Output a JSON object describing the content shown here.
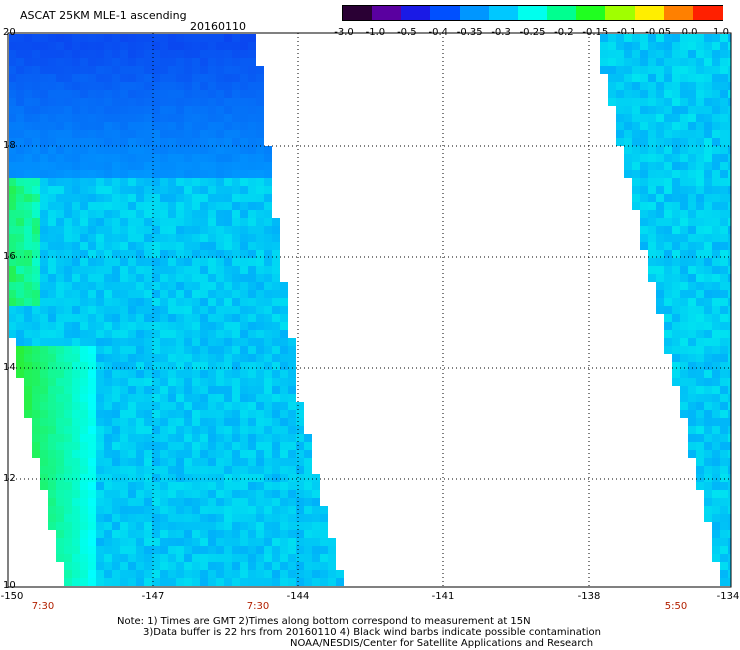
{
  "header": {
    "title": "ASCAT 25KM MLE-1 ascending",
    "date": "20160110"
  },
  "colorbar": {
    "ticks": [
      "-3.0",
      "-1.0",
      "-0.5",
      "-0.4",
      "-0.35",
      "-0.3",
      "-0.25",
      "-0.2",
      "-0.15",
      "-0.1",
      "-0.05",
      "0.0",
      "1.0"
    ],
    "colors": [
      "#2a0034",
      "#5a00a0",
      "#1a1ae6",
      "#0050ff",
      "#0096ff",
      "#00c8ff",
      "#00ffee",
      "#00ff90",
      "#20ff20",
      "#a0ff00",
      "#ffee00",
      "#ff8000",
      "#ff2000"
    ]
  },
  "axes": {
    "lat_labels": [
      "20",
      "18",
      "16",
      "14",
      "12",
      "10"
    ],
    "lon_labels": [
      "-150",
      "-147",
      "-144",
      "-141",
      "-138",
      "-134"
    ],
    "time_labels": [
      "7:30",
      "7:30",
      "5:50"
    ]
  },
  "notes": {
    "line1": "Note: 1) Times are GMT 2)Times along bottom correspond to measurement at 15N",
    "line2": "3)Data buffer is 22 hrs from 20160110 4) Black wind barbs indicate possible contamination",
    "line3": "NOAA/NESDIS/Center for Satellite Applications and Research"
  }
}
